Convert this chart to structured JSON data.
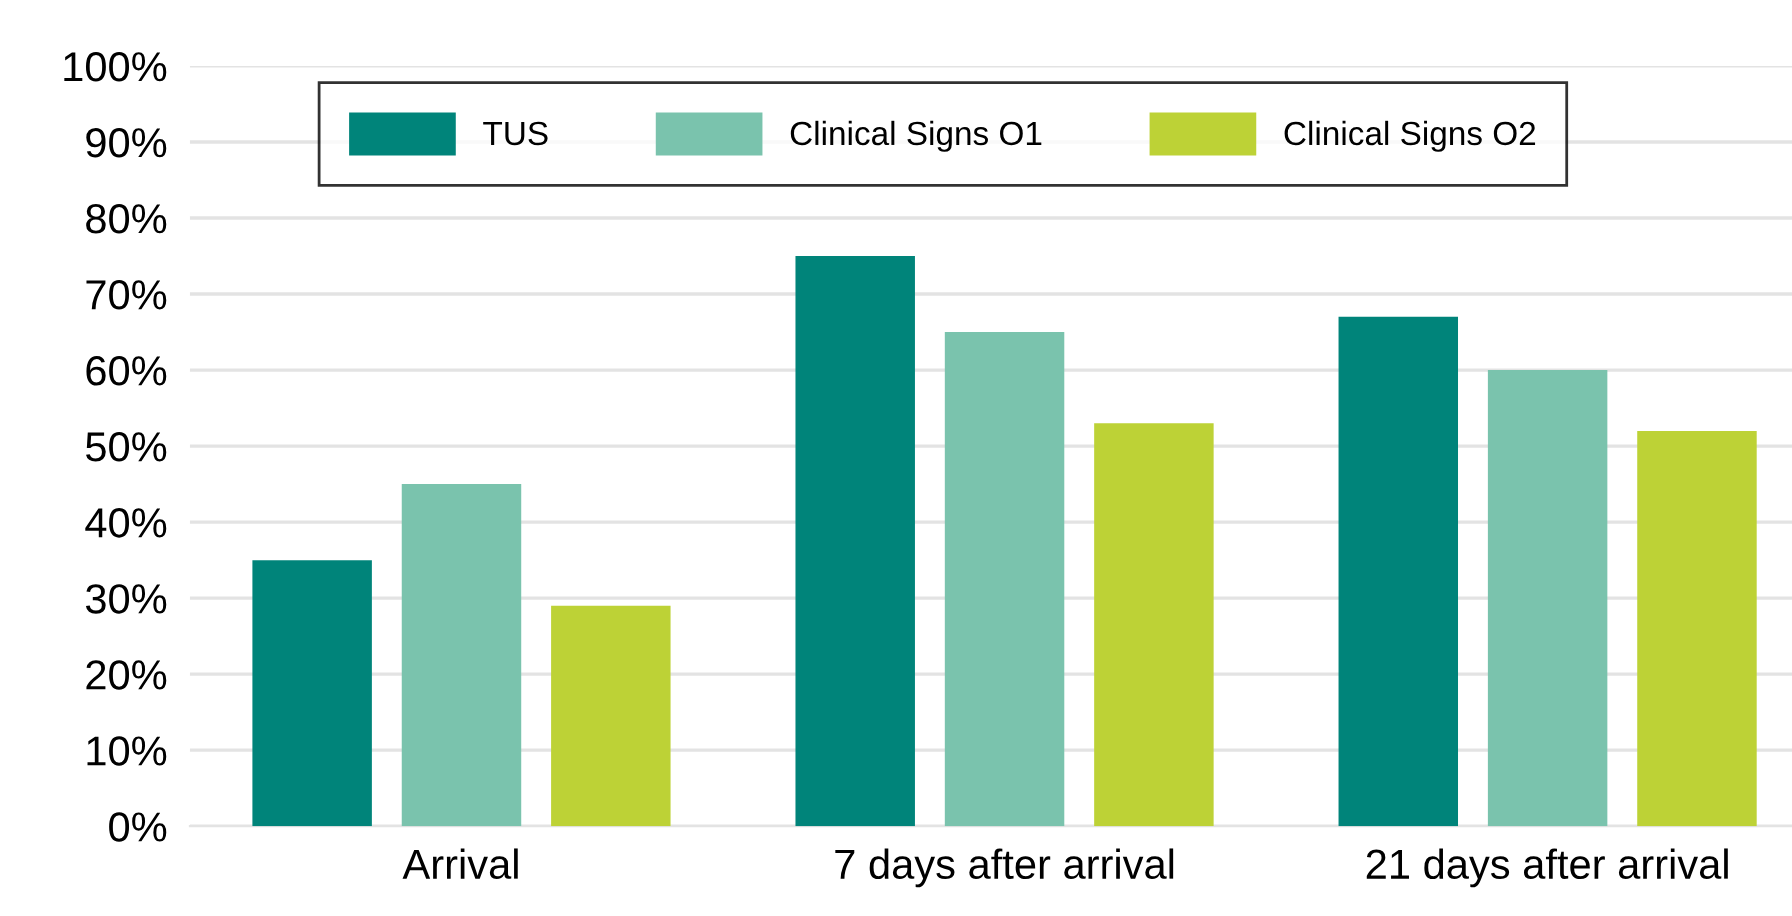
{
  "chart_data": {
    "type": "bar",
    "categories": [
      "Arrival",
      "7 days after arrival",
      "21 days after arrival"
    ],
    "series": [
      {
        "name": "TUS",
        "color": "#00847a",
        "values": [
          35,
          75,
          67
        ]
      },
      {
        "name": "Clinical Signs O1",
        "color": "#7ac3ad",
        "values": [
          45,
          65,
          60
        ]
      },
      {
        "name": "Clinical Signs O2",
        "color": "#bdd236",
        "values": [
          29,
          53,
          52
        ]
      }
    ],
    "ylim": [
      0,
      100
    ],
    "yticks": [
      {
        "value": 0,
        "label": "0%"
      },
      {
        "value": 10,
        "label": "10%"
      },
      {
        "value": 20,
        "label": "20%"
      },
      {
        "value": 30,
        "label": "30%"
      },
      {
        "value": 40,
        "label": "40%"
      },
      {
        "value": 50,
        "label": "50%"
      },
      {
        "value": 60,
        "label": "60%"
      },
      {
        "value": 70,
        "label": "70%"
      },
      {
        "value": 80,
        "label": "80%"
      },
      {
        "value": 90,
        "label": "90%"
      },
      {
        "value": 100,
        "label": "100%"
      }
    ],
    "grid": "y",
    "legend": "top"
  }
}
